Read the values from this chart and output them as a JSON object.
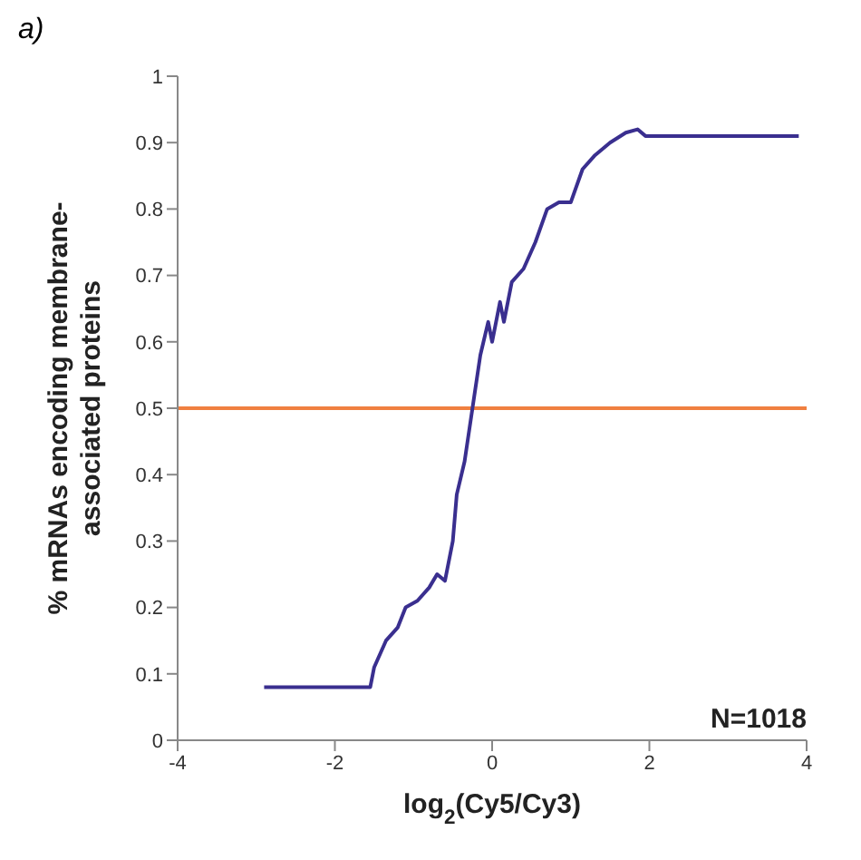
{
  "chart_data": {
    "type": "line",
    "title": "a)",
    "xlabel": "log$_{2}$(Cy5/Cy3)",
    "ylabel": "% mRNAs encoding membrane-associated proteins",
    "x": [
      -2.9,
      -1.55,
      -1.5,
      -1.35,
      -1.2,
      -1.1,
      -0.95,
      -0.8,
      -0.7,
      -0.6,
      -0.5,
      -0.45,
      -0.35,
      -0.25,
      -0.15,
      -0.05,
      0.0,
      0.1,
      0.15,
      0.25,
      0.4,
      0.55,
      0.7,
      0.85,
      1.0,
      1.15,
      1.3,
      1.5,
      1.7,
      1.85,
      1.95,
      3.9
    ],
    "series": [
      {
        "color": "#3a2f8f",
        "values": [
          0.08,
          0.08,
          0.11,
          0.15,
          0.17,
          0.2,
          0.21,
          0.23,
          0.25,
          0.24,
          0.3,
          0.37,
          0.42,
          0.5,
          0.58,
          0.63,
          0.6,
          0.66,
          0.63,
          0.69,
          0.71,
          0.75,
          0.8,
          0.81,
          0.81,
          0.86,
          0.88,
          0.9,
          0.915,
          0.92,
          0.91,
          0.91
        ]
      }
    ],
    "xlim": [
      -4,
      4
    ],
    "xticks": [
      -4,
      -2,
      0,
      2,
      4
    ],
    "ylim": [
      0,
      1
    ],
    "yticks": [
      0,
      0.1,
      0.2,
      0.3,
      0.4,
      0.5,
      0.6,
      0.7,
      0.8,
      0.9,
      1
    ],
    "ref_lines": [
      {
        "axis": "y",
        "value": 0.5,
        "color": "#f08040"
      }
    ],
    "annotations": [
      "N=1018"
    ],
    "marker": "none",
    "line_style": "solid"
  }
}
